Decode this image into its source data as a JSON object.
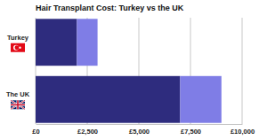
{
  "chart_data": {
    "type": "bar",
    "title": "Hair Transplant Cost: Turkey vs the UK",
    "orientation": "horizontal",
    "stacked": true,
    "grid": true,
    "categories": [
      "Turkey",
      "The UK"
    ],
    "series": [
      {
        "color": "#2e2c7e",
        "values": [
          2000,
          7000
        ]
      },
      {
        "color": "#7f7de6",
        "values": [
          1000,
          2000
        ]
      }
    ],
    "xlim": [
      0,
      10000
    ],
    "xticks": [
      {
        "value": 0,
        "label": "£0"
      },
      {
        "value": 2500,
        "label": "£2,500"
      },
      {
        "value": 5000,
        "label": "£5,000"
      },
      {
        "value": 7500,
        "label": "£7,500"
      },
      {
        "value": 10000,
        "label": "£10,000"
      }
    ]
  }
}
